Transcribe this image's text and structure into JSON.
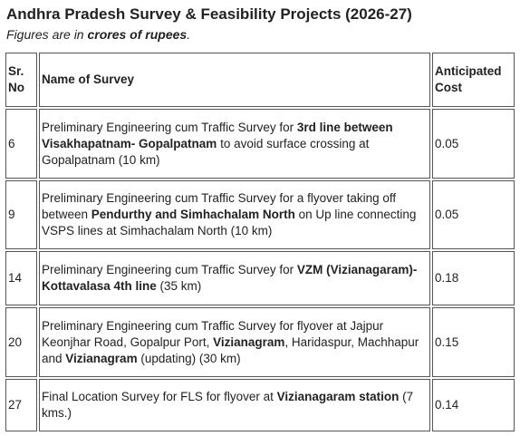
{
  "header": {
    "title": "Andhra Pradesh Survey & Feasibility Projects (2026-27)",
    "subtitle": {
      "prefix": "Figures are in ",
      "emphasis": "crores of rupees",
      "suffix": "."
    }
  },
  "table": {
    "columns": [
      "Sr.\nNo",
      "Name of Survey",
      "Anticipated\nCost"
    ],
    "rows": [
      {
        "sr": "6",
        "name": [
          {
            "text": "Preliminary Engineering cum Traffic Survey for ",
            "bold": false
          },
          {
            "text": "3rd line between Visakhapatnam- Gopalpatnam",
            "bold": true
          },
          {
            "text": " to avoid surface crossing at Gopalpatnam (10 km)",
            "bold": false
          }
        ],
        "cost": "0.05"
      },
      {
        "sr": "9",
        "name": [
          {
            "text": "Preliminary Engineering cum Traffic Survey for a flyover taking off between ",
            "bold": false
          },
          {
            "text": "Pendurthy and Simhachalam North",
            "bold": true
          },
          {
            "text": " on Up line connecting VSPS lines at Simhachalam North (10 km)",
            "bold": false
          }
        ],
        "cost": "0.05"
      },
      {
        "sr": "14",
        "name": [
          {
            "text": "Preliminary Engineering cum Traffic Survey for ",
            "bold": false
          },
          {
            "text": "VZM (Vizianagaram)-Kottavalasa 4th line",
            "bold": true
          },
          {
            "text": " (35 km)",
            "bold": false
          }
        ],
        "cost": "0.18"
      },
      {
        "sr": "20",
        "name": [
          {
            "text": "Preliminary Engineering cum Traffic Survey for flyover at Jajpur Keonjhar Road, Gopalpur Port, ",
            "bold": false
          },
          {
            "text": "Vizianagram",
            "bold": true
          },
          {
            "text": ", Haridaspur, Machhapur and ",
            "bold": false
          },
          {
            "text": "Vizianagram",
            "bold": true
          },
          {
            "text": " (updating) (30 km)",
            "bold": false
          }
        ],
        "cost": "0.15"
      },
      {
        "sr": "27",
        "name": [
          {
            "text": "Final Location Survey for FLS for flyover at ",
            "bold": false
          },
          {
            "text": "Vizianagaram station",
            "bold": true
          },
          {
            "text": " (7 kms.)",
            "bold": false
          }
        ],
        "cost": "0.14"
      }
    ]
  }
}
